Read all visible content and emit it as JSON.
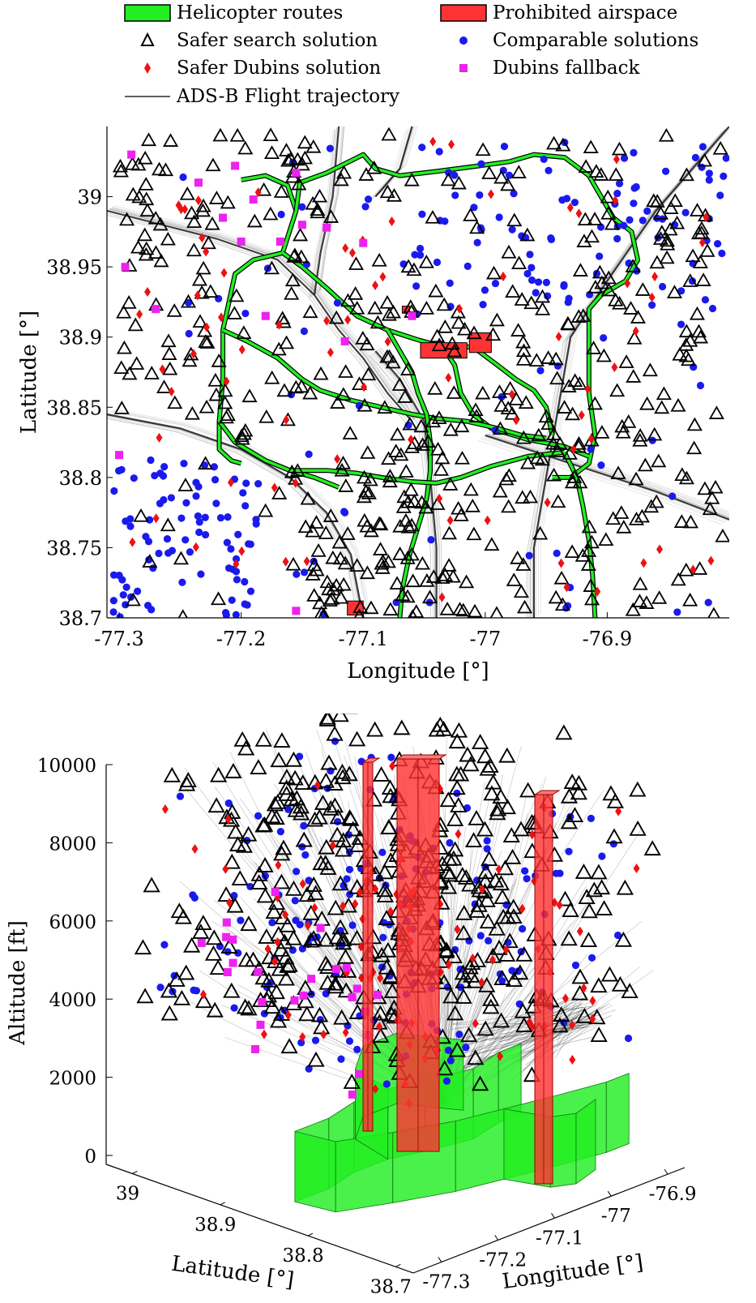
{
  "legend": {
    "helicopter_routes": "Helicopter routes",
    "prohibited_airspace": "Prohibited airspace",
    "safer_search": "Safer search solution",
    "comparable": "Comparable solutions",
    "safer_dubins": "Safer Dubins solution",
    "dubins_fallback": "Dubins fallback",
    "adsb": "ADS-B Flight trajectory"
  },
  "colors": {
    "helicopter_routes": "#22ee22",
    "prohibited_airspace": "#ff3333",
    "safer_search": "#000000",
    "comparable": "#1a1aee",
    "safer_dubins": "#ee1111",
    "dubins_fallback": "#ee22ee",
    "adsb": "#000000"
  },
  "chart_data": [
    {
      "type": "scatter",
      "xlabel": "Longitude [°]",
      "ylabel": "Latitude [°]",
      "xlim": [
        -77.31,
        -76.8
      ],
      "ylim": [
        38.7,
        39.05
      ],
      "xticks": [
        -77.3,
        -77.2,
        -77.1,
        -77.0,
        -76.9
      ],
      "xtick_labels": [
        "-77.3",
        "-77.2",
        "-77.1",
        "-77",
        "-76.9"
      ],
      "yticks": [
        38.7,
        38.75,
        38.8,
        38.85,
        38.9,
        38.95,
        39.0
      ],
      "ytick_labels": [
        "38.7",
        "38.75",
        "38.8",
        "38.85",
        "38.9",
        "38.95",
        "39"
      ],
      "series": [
        {
          "name": "Safer search solution",
          "marker": "triangle",
          "count": 520
        },
        {
          "name": "Comparable solutions",
          "marker": "circle",
          "count": 230
        },
        {
          "name": "Safer Dubins solution",
          "marker": "diamond",
          "count": 80
        },
        {
          "name": "Dubins fallback",
          "marker": "square",
          "points": [
            [
              -77.29,
              39.03
            ],
            [
              -77.235,
              39.01
            ],
            [
              -77.205,
              39.022
            ],
            [
              -77.155,
              39.017
            ],
            [
              -77.215,
              38.985
            ],
            [
              -77.19,
              38.998
            ],
            [
              -77.2,
              38.968
            ],
            [
              -77.168,
              38.968
            ],
            [
              -77.15,
              38.98
            ],
            [
              -77.13,
              38.978
            ],
            [
              -77.1,
              38.967
            ],
            [
              -77.295,
              38.95
            ],
            [
              -77.27,
              38.92
            ],
            [
              -77.18,
              38.915
            ],
            [
              -77.06,
              38.915
            ],
            [
              -77.115,
              38.897
            ],
            [
              -77.3,
              38.816
            ],
            [
              -77.155,
              38.705
            ]
          ]
        }
      ],
      "helicopter_routes": [
        [
          [
            -77.2,
            39.012
          ],
          [
            -77.18,
            39.015
          ],
          [
            -77.162,
            39.008
          ],
          [
            -77.155,
            38.99
          ],
          [
            -77.166,
            38.96
          ],
          [
            -77.19,
            38.955
          ],
          [
            -77.205,
            38.945
          ],
          [
            -77.21,
            38.925
          ],
          [
            -77.215,
            38.905
          ],
          [
            -77.215,
            38.87
          ],
          [
            -77.218,
            38.84
          ],
          [
            -77.218,
            38.82
          ],
          [
            -77.208,
            38.812
          ],
          [
            -77.2,
            38.81
          ]
        ],
        [
          [
            -77.155,
            38.99
          ],
          [
            -77.152,
            39.01
          ],
          [
            -77.13,
            39.017
          ],
          [
            -77.1,
            39.03
          ],
          [
            -77.09,
            39.02
          ],
          [
            -77.07,
            39.015
          ],
          [
            -77.04,
            39.018
          ],
          [
            -77.005,
            39.022
          ],
          [
            -76.98,
            39.025
          ],
          [
            -76.96,
            39.03
          ],
          [
            -76.935,
            39.028
          ],
          [
            -76.915,
            39.015
          ],
          [
            -76.905,
            39.0
          ],
          [
            -76.895,
            38.985
          ],
          [
            -76.88,
            38.975
          ],
          [
            -76.875,
            38.955
          ],
          [
            -76.885,
            38.94
          ],
          [
            -76.905,
            38.93
          ],
          [
            -76.915,
            38.92
          ],
          [
            -76.915,
            38.89
          ],
          [
            -76.915,
            38.86
          ],
          [
            -76.91,
            38.83
          ],
          [
            -76.915,
            38.81
          ],
          [
            -76.93,
            38.8
          ],
          [
            -76.945,
            38.8
          ]
        ],
        [
          [
            -77.215,
            38.905
          ],
          [
            -77.195,
            38.897
          ],
          [
            -77.17,
            38.885
          ],
          [
            -77.15,
            38.87
          ],
          [
            -77.135,
            38.862
          ],
          [
            -77.11,
            38.855
          ],
          [
            -77.085,
            38.85
          ],
          [
            -77.06,
            38.845
          ],
          [
            -77.04,
            38.842
          ]
        ],
        [
          [
            -77.218,
            38.84
          ],
          [
            -77.205,
            38.825
          ],
          [
            -77.18,
            38.812
          ],
          [
            -77.16,
            38.805
          ],
          [
            -77.14,
            38.8
          ],
          [
            -77.12,
            38.793
          ]
        ],
        [
          [
            -77.166,
            38.96
          ],
          [
            -77.15,
            38.95
          ],
          [
            -77.13,
            38.935
          ],
          [
            -77.105,
            38.915
          ],
          [
            -77.08,
            38.905
          ],
          [
            -77.055,
            38.898
          ],
          [
            -77.035,
            38.893
          ],
          [
            -77.025,
            38.88
          ],
          [
            -77.02,
            38.86
          ],
          [
            -77.01,
            38.845
          ],
          [
            -76.995,
            38.835
          ],
          [
            -76.965,
            38.827
          ],
          [
            -76.935,
            38.822
          ],
          [
            -76.915,
            38.815
          ]
        ],
        [
          [
            -77.08,
            38.905
          ],
          [
            -77.07,
            38.89
          ],
          [
            -77.06,
            38.875
          ],
          [
            -77.055,
            38.86
          ],
          [
            -77.048,
            38.845
          ],
          [
            -77.045,
            38.825
          ],
          [
            -77.045,
            38.805
          ],
          [
            -77.048,
            38.785
          ],
          [
            -77.055,
            38.765
          ],
          [
            -77.062,
            38.745
          ],
          [
            -77.068,
            38.72
          ],
          [
            -77.07,
            38.7
          ]
        ],
        [
          [
            -77.16,
            38.805
          ],
          [
            -77.13,
            38.805
          ],
          [
            -77.105,
            38.803
          ],
          [
            -77.085,
            38.8
          ],
          [
            -77.06,
            38.797
          ],
          [
            -77.04,
            38.796
          ],
          [
            -77.02,
            38.8
          ],
          [
            -76.995,
            38.808
          ],
          [
            -76.965,
            38.815
          ],
          [
            -76.935,
            38.818
          ]
        ],
        [
          [
            -77.04,
            38.842
          ],
          [
            -77.015,
            38.84
          ],
          [
            -76.99,
            38.835
          ],
          [
            -76.97,
            38.83
          ],
          [
            -76.95,
            38.828
          ]
        ],
        [
          [
            -76.935,
            38.818
          ],
          [
            -76.925,
            38.8
          ],
          [
            -76.92,
            38.78
          ],
          [
            -76.915,
            38.755
          ],
          [
            -76.912,
            38.73
          ],
          [
            -76.91,
            38.7
          ]
        ],
        [
          [
            -77.035,
            38.893
          ],
          [
            -77.01,
            38.893
          ],
          [
            -76.99,
            38.88
          ],
          [
            -76.975,
            38.87
          ],
          [
            -76.96,
            38.862
          ],
          [
            -76.95,
            38.85
          ],
          [
            -76.945,
            38.83
          ]
        ]
      ],
      "prohibited_airspace": [
        {
          "lon": [
            -77.053,
            -77.015
          ],
          "lat": [
            38.885,
            38.896
          ]
        },
        {
          "lon": [
            -77.013,
            -76.995
          ],
          "lat": [
            38.889,
            38.903
          ]
        },
        {
          "lon": [
            -77.068,
            -77.062
          ],
          "lat": [
            38.917,
            38.922
          ]
        },
        {
          "lon": [
            -77.113,
            -77.1
          ],
          "lat": [
            38.702,
            38.712
          ]
        }
      ]
    },
    {
      "type": "scatter3d",
      "xlabel": "Longitude [°]",
      "ylabel": "Latitude [°]",
      "zlabel": "Altitude [ft]",
      "xticks": [
        -77.3,
        -77.2,
        -77.1,
        -77.0,
        -76.9
      ],
      "xtick_labels": [
        "-77.3",
        "-77.2",
        "-77.1",
        "-77",
        "-76.9"
      ],
      "yticks": [
        39.0,
        38.9,
        38.8,
        38.7
      ],
      "ytick_labels": [
        "39",
        "38.9",
        "38.8",
        "38.7"
      ],
      "zticks": [
        0,
        2000,
        4000,
        6000,
        8000,
        10000
      ],
      "ztick_labels": [
        "0",
        "2000",
        "4000",
        "6000",
        "8000",
        "10000"
      ],
      "zlim": [
        0,
        10000
      ]
    }
  ]
}
